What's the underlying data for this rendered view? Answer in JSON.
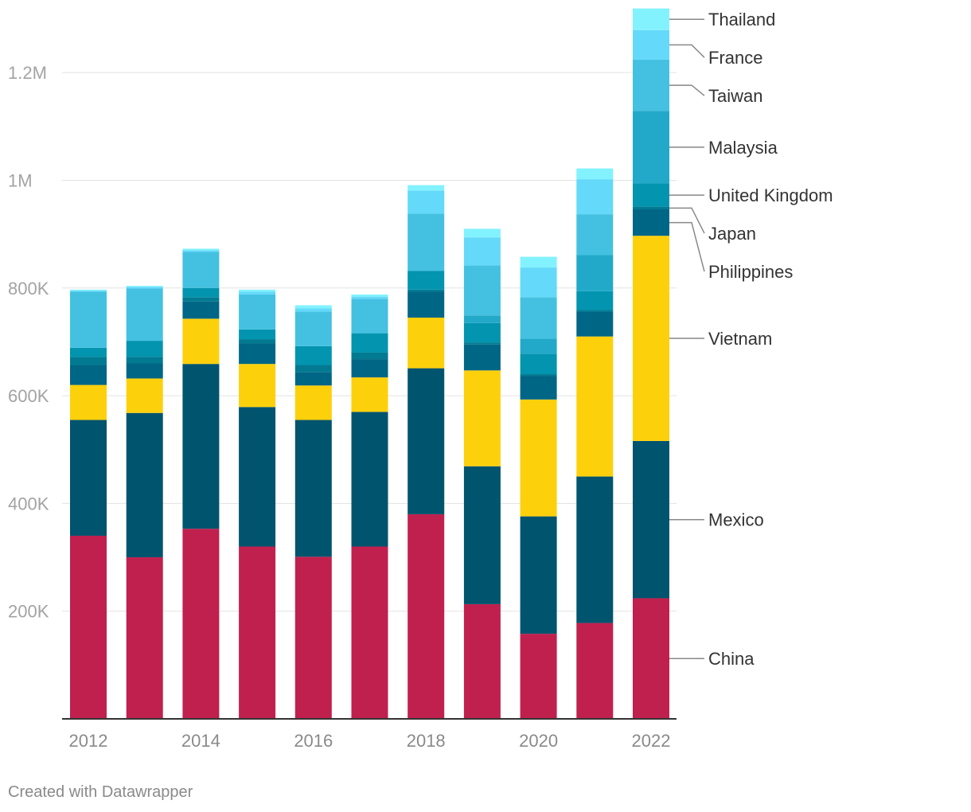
{
  "chart_data": {
    "type": "bar",
    "stacked": true,
    "title": "",
    "xlabel": "",
    "ylabel": "",
    "ylim": [
      0,
      1320000
    ],
    "yticks": [
      200000,
      400000,
      600000,
      800000,
      1000000,
      1200000
    ],
    "ytick_labels": [
      "200K",
      "400K",
      "600K",
      "800K",
      "1M",
      "1.2M"
    ],
    "categories": [
      "2012",
      "2013",
      "2014",
      "2015",
      "2016",
      "2017",
      "2018",
      "2019",
      "2020",
      "2021",
      "2022"
    ],
    "x_tick_labels": [
      "2012",
      "",
      "2014",
      "",
      "2016",
      "",
      "2018",
      "",
      "2020",
      "",
      "2022"
    ],
    "grid": true,
    "legend": "right-inline",
    "series": [
      {
        "name": "China",
        "color": "#c0204e",
        "values": [
          340000,
          300000,
          353000,
          320000,
          301000,
          320000,
          380000,
          213000,
          158000,
          178000,
          224000
        ]
      },
      {
        "name": "Mexico",
        "color": "#00546e",
        "values": [
          215000,
          268000,
          306000,
          259000,
          254000,
          250000,
          271000,
          256000,
          218000,
          272000,
          292000
        ]
      },
      {
        "name": "Vietnam",
        "color": "#fdd00c",
        "values": [
          65000,
          64000,
          84000,
          80000,
          64000,
          64000,
          94000,
          178000,
          217000,
          260000,
          381000
        ]
      },
      {
        "name": "Philippines",
        "color": "#006685",
        "values": [
          37000,
          28000,
          32000,
          38000,
          25000,
          34000,
          48000,
          48000,
          44000,
          46000,
          49000
        ]
      },
      {
        "name": "Japan",
        "color": "#027a91",
        "values": [
          15000,
          12000,
          8000,
          8000,
          13000,
          12000,
          4000,
          4000,
          3000,
          3000,
          5000
        ]
      },
      {
        "name": "United Kingdom",
        "color": "#0394af",
        "values": [
          17000,
          30000,
          17000,
          18000,
          35000,
          36000,
          35000,
          36000,
          38000,
          35000,
          43000
        ]
      },
      {
        "name": "Malaysia",
        "color": "#22a9c9",
        "values": [
          0,
          0,
          0,
          0,
          0,
          0,
          0,
          14000,
          28000,
          67000,
          135000
        ]
      },
      {
        "name": "Taiwan",
        "color": "#44c1e1",
        "values": [
          104000,
          97000,
          67000,
          65000,
          64000,
          64000,
          106000,
          93000,
          77000,
          76000,
          95000
        ]
      },
      {
        "name": "France",
        "color": "#64d9f9",
        "values": [
          2000,
          3000,
          3000,
          5000,
          6000,
          4000,
          43000,
          52000,
          55000,
          65000,
          55000
        ]
      },
      {
        "name": "Thailand",
        "color": "#83f2ff",
        "values": [
          2000,
          2000,
          3000,
          4000,
          6000,
          4000,
          10000,
          16000,
          20000,
          20000,
          40000
        ]
      }
    ]
  },
  "footer": {
    "credit": "Created with Datawrapper"
  }
}
